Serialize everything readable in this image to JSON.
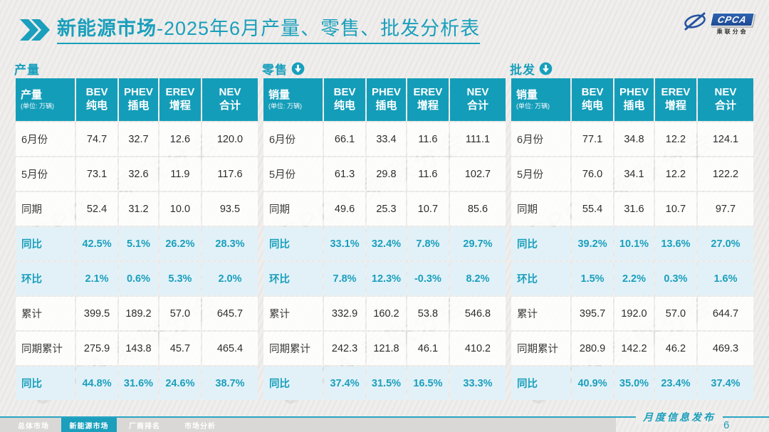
{
  "colors": {
    "accent": "#1a9fbc",
    "header_bg": "#149db9",
    "highlight_row_bg": "#e2f1f8",
    "logo_blue": "#27549f"
  },
  "title": {
    "prefix": "新能源市场",
    "rest": "-2025年6月产量、零售、批发分析表"
  },
  "logo": {
    "text": "CPCA",
    "subtext": "乘联分会"
  },
  "watermark": "CPCA 乘联分会",
  "tables": [
    {
      "id": "production",
      "section_label": "产量",
      "arrow": false,
      "corner_label": "产量",
      "unit": "(单位: 万辆)",
      "columns": [
        {
          "l1": "BEV",
          "l2": "纯电"
        },
        {
          "l1": "PHEV",
          "l2": "插电"
        },
        {
          "l1": "EREV",
          "l2": "增程"
        },
        {
          "l1": "NEV",
          "l2": "合计"
        }
      ],
      "rows": [
        {
          "label": "6月份",
          "values": [
            "74.7",
            "32.7",
            "12.6",
            "120.0"
          ],
          "highlight": false
        },
        {
          "label": "5月份",
          "values": [
            "73.1",
            "32.6",
            "11.9",
            "117.6"
          ],
          "highlight": false
        },
        {
          "label": "同期",
          "values": [
            "52.4",
            "31.2",
            "10.0",
            "93.5"
          ],
          "highlight": false
        },
        {
          "label": "同比",
          "values": [
            "42.5%",
            "5.1%",
            "26.2%",
            "28.3%"
          ],
          "highlight": true
        },
        {
          "label": "环比",
          "values": [
            "2.1%",
            "0.6%",
            "5.3%",
            "2.0%"
          ],
          "highlight": true
        },
        {
          "label": "累计",
          "values": [
            "399.5",
            "189.2",
            "57.0",
            "645.7"
          ],
          "highlight": false
        },
        {
          "label": "同期累计",
          "values": [
            "275.9",
            "143.8",
            "45.7",
            "465.4"
          ],
          "highlight": false
        },
        {
          "label": "同比",
          "values": [
            "44.8%",
            "31.6%",
            "24.6%",
            "38.7%"
          ],
          "highlight": true
        }
      ]
    },
    {
      "id": "retail",
      "section_label": "零售",
      "arrow": true,
      "corner_label": "销量",
      "unit": "(单位: 万辆)",
      "columns": [
        {
          "l1": "BEV",
          "l2": "纯电"
        },
        {
          "l1": "PHEV",
          "l2": "插电"
        },
        {
          "l1": "EREV",
          "l2": "增程"
        },
        {
          "l1": "NEV",
          "l2": "合计"
        }
      ],
      "rows": [
        {
          "label": "6月份",
          "values": [
            "66.1",
            "33.4",
            "11.6",
            "111.1"
          ],
          "highlight": false
        },
        {
          "label": "5月份",
          "values": [
            "61.3",
            "29.8",
            "11.6",
            "102.7"
          ],
          "highlight": false
        },
        {
          "label": "同期",
          "values": [
            "49.6",
            "25.3",
            "10.7",
            "85.6"
          ],
          "highlight": false
        },
        {
          "label": "同比",
          "values": [
            "33.1%",
            "32.4%",
            "7.8%",
            "29.7%"
          ],
          "highlight": true
        },
        {
          "label": "环比",
          "values": [
            "7.8%",
            "12.3%",
            "-0.3%",
            "8.2%"
          ],
          "highlight": true
        },
        {
          "label": "累计",
          "values": [
            "332.9",
            "160.2",
            "53.8",
            "546.8"
          ],
          "highlight": false
        },
        {
          "label": "同期累计",
          "values": [
            "242.3",
            "121.8",
            "46.1",
            "410.2"
          ],
          "highlight": false
        },
        {
          "label": "同比",
          "values": [
            "37.4%",
            "31.5%",
            "16.5%",
            "33.3%"
          ],
          "highlight": true
        }
      ]
    },
    {
      "id": "wholesale",
      "section_label": "批发",
      "arrow": true,
      "corner_label": "销量",
      "unit": "(单位: 万辆)",
      "columns": [
        {
          "l1": "BEV",
          "l2": "纯电"
        },
        {
          "l1": "PHEV",
          "l2": "插电"
        },
        {
          "l1": "EREV",
          "l2": "增程"
        },
        {
          "l1": "NEV",
          "l2": "合计"
        }
      ],
      "rows": [
        {
          "label": "6月份",
          "values": [
            "77.1",
            "34.8",
            "12.2",
            "124.1"
          ],
          "highlight": false
        },
        {
          "label": "5月份",
          "values": [
            "76.0",
            "34.1",
            "12.2",
            "122.2"
          ],
          "highlight": false
        },
        {
          "label": "同期",
          "values": [
            "55.4",
            "31.6",
            "10.7",
            "97.7"
          ],
          "highlight": false
        },
        {
          "label": "同比",
          "values": [
            "39.2%",
            "10.1%",
            "13.6%",
            "27.0%"
          ],
          "highlight": true
        },
        {
          "label": "环比",
          "values": [
            "1.5%",
            "2.2%",
            "0.3%",
            "1.6%"
          ],
          "highlight": true
        },
        {
          "label": "累计",
          "values": [
            "395.7",
            "192.0",
            "57.0",
            "644.7"
          ],
          "highlight": false
        },
        {
          "label": "同期累计",
          "values": [
            "280.9",
            "142.2",
            "46.2",
            "469.3"
          ],
          "highlight": false
        },
        {
          "label": "同比",
          "values": [
            "40.9%",
            "35.0%",
            "23.4%",
            "37.4%"
          ],
          "highlight": true
        }
      ]
    }
  ],
  "footer": {
    "tabs": [
      {
        "label": "总体市场",
        "active": false
      },
      {
        "label": "新能源市场",
        "active": true
      },
      {
        "label": "厂商排名",
        "active": false
      },
      {
        "label": "市场分析",
        "active": false
      }
    ],
    "publish_label": "月度信息发布",
    "page_number": "6"
  }
}
